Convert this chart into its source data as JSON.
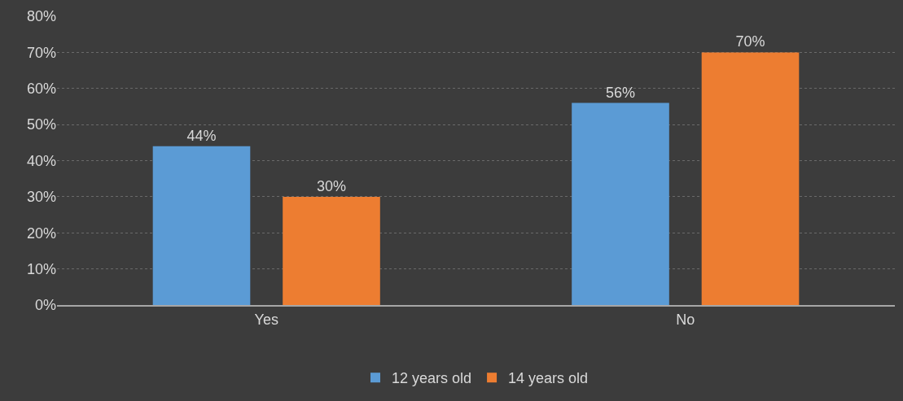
{
  "chart_data": {
    "type": "bar",
    "categories": [
      "Yes",
      "No"
    ],
    "series": [
      {
        "name": "12 years old",
        "color": "#5b9bd5",
        "values": [
          44,
          56
        ],
        "value_labels": [
          "44%",
          "56%"
        ]
      },
      {
        "name": "14 years old",
        "color": "#ed7d31",
        "values": [
          30,
          70
        ],
        "value_labels": [
          "30%",
          "70%"
        ]
      }
    ],
    "ylim": [
      0,
      80
    ],
    "yticks": [
      {
        "value": 0,
        "label": "0%"
      },
      {
        "value": 10,
        "label": "10%"
      },
      {
        "value": 20,
        "label": "20%"
      },
      {
        "value": 30,
        "label": "30%"
      },
      {
        "value": 40,
        "label": "40%"
      },
      {
        "value": 50,
        "label": "50%"
      },
      {
        "value": 60,
        "label": "60%"
      },
      {
        "value": 70,
        "label": "70%"
      },
      {
        "value": 80,
        "label": "80%"
      }
    ],
    "grid": "y",
    "legend": "bottom"
  }
}
